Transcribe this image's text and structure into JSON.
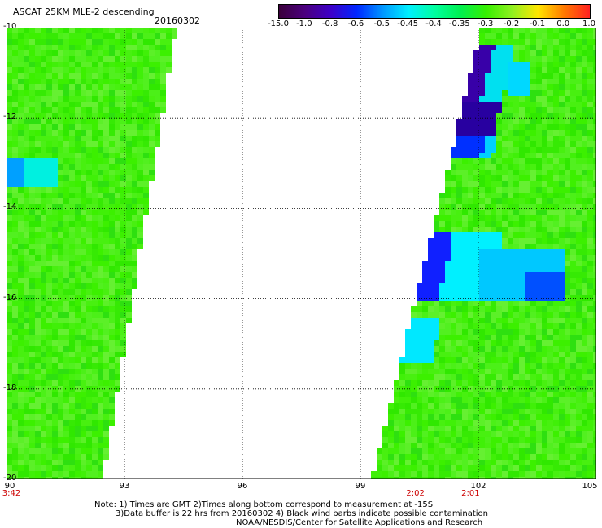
{
  "header": {
    "title": "ASCAT 25KM MLE-2 descending",
    "date": "20160302"
  },
  "colorbar": {
    "ticks": [
      "-15.0",
      "-1.0",
      "-0.8",
      "-0.6",
      "-0.5",
      "-0.45",
      "-0.4",
      "-0.35",
      "-0.3",
      "-0.2",
      "-0.1",
      "0.0",
      "1.0"
    ],
    "colors": [
      "#3a003a",
      "#4b007f",
      "#3d00c8",
      "#0026ff",
      "#0096ff",
      "#00f0ff",
      "#00ffa0",
      "#00f050",
      "#36f000",
      "#90f020",
      "#ffe600",
      "#ff7a00",
      "#ff2020"
    ]
  },
  "map": {
    "lat_labels": [
      "-10",
      "-12",
      "-14",
      "-16",
      "-18",
      "-20"
    ],
    "lon_labels": [
      "90",
      "93",
      "96",
      "99",
      "102",
      "105"
    ],
    "lat_range": [
      -20,
      -10
    ],
    "lon_range": [
      90,
      105
    ],
    "grid": "dotted",
    "land_color": "#ffffff"
  },
  "times": [
    {
      "label": "3:42",
      "lon": 90
    },
    {
      "label": "2:02",
      "lon": 100.4
    },
    {
      "label": "2:01",
      "lon": 101.8
    }
  ],
  "notes": [
    "Note: 1) Times are GMT 2)Times along bottom correspond to measurement at -15S",
    "3)Data buffer is 22 hrs from 20160302 4) Black wind barbs indicate possible contamination",
    "NOAA/NESDIS/Center for Satellite Applications and Research"
  ]
}
